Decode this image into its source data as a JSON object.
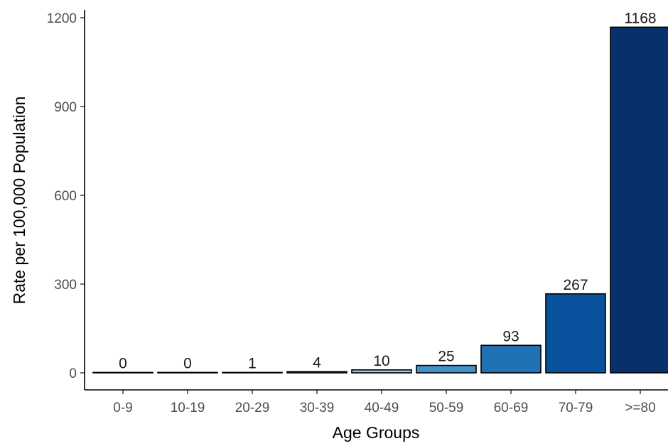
{
  "chart_data": {
    "type": "bar",
    "title": "",
    "xlabel": "Age Groups",
    "ylabel": "Rate per 100,000 Population",
    "categories": [
      "0-9",
      "10-19",
      "20-29",
      "30-39",
      "40-49",
      "50-59",
      "60-69",
      "70-79",
      ">=80"
    ],
    "values": [
      0,
      0,
      1,
      4,
      10,
      25,
      93,
      267,
      1168
    ],
    "data_labels": [
      "0",
      "0",
      "1",
      "4",
      "10",
      "25",
      "93",
      "267",
      "1168"
    ],
    "yticks": [
      0,
      300,
      600,
      900,
      1200
    ],
    "ytick_labels": [
      "0",
      "300",
      "600",
      "900",
      "1200"
    ],
    "ylim": [
      -45,
      1230
    ],
    "grid": false,
    "legend": "none",
    "bar_colors": [
      "#eff5fb",
      "#e2edf8",
      "#cfe1f2",
      "#b5d4e9",
      "#93c3df",
      "#6daed5",
      "#4b97c9",
      "#2f7ebc",
      "#1864aa"
    ],
    "bar_colors_displayed": [
      "#f7fbff",
      "#f7fbff",
      "#e3eef9",
      "#cfe1f2",
      "#9ecae1",
      "#4292c6",
      "#2171b5",
      "#08519c",
      "#08306b"
    ],
    "bar_outline": "#000000"
  }
}
